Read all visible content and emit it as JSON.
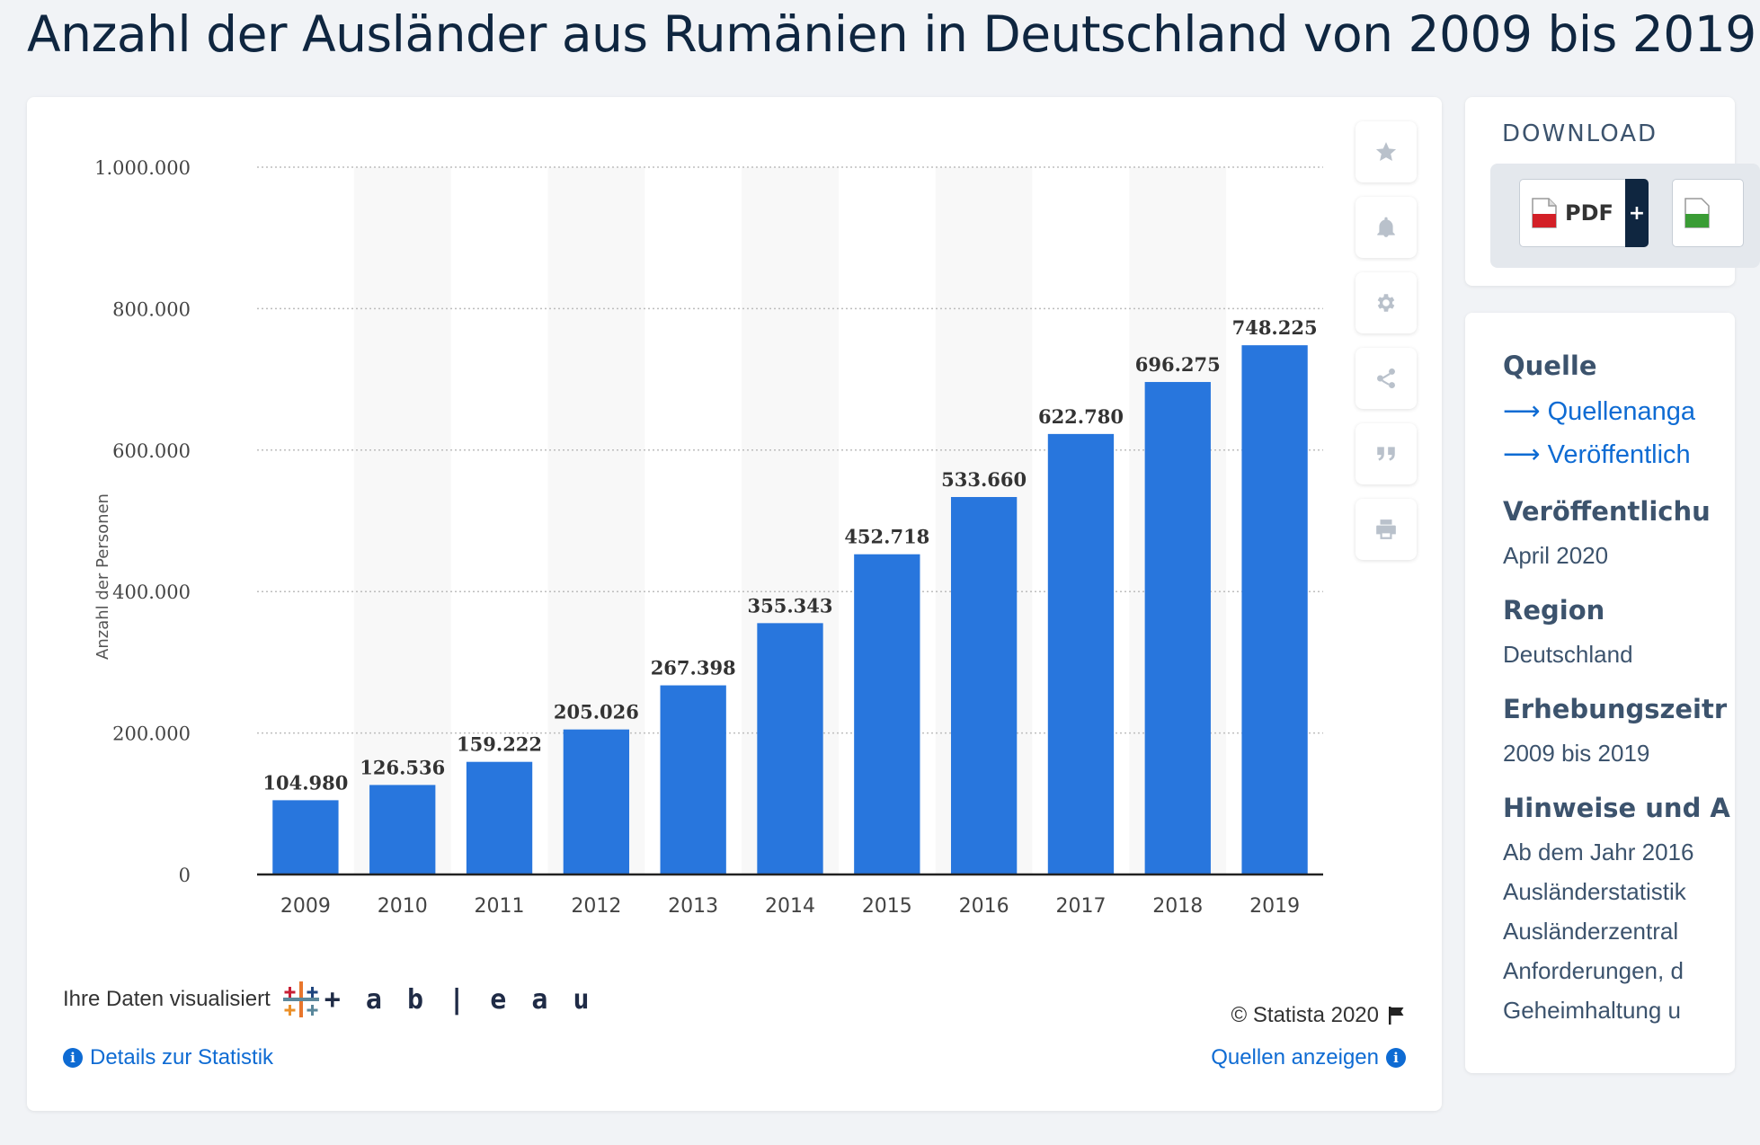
{
  "page_title": "Anzahl der Ausländer aus Rumänien in Deutschland von 2009 bis 2019",
  "chart_data": {
    "type": "bar",
    "title": "",
    "xlabel": "",
    "ylabel": "Anzahl der Personen",
    "categories": [
      "2009",
      "2010",
      "2011",
      "2012",
      "2013",
      "2014",
      "2015",
      "2016",
      "2017",
      "2018",
      "2019"
    ],
    "values": [
      104980,
      126536,
      159222,
      205026,
      267398,
      355343,
      452718,
      533660,
      622780,
      696275,
      748225
    ],
    "value_labels": [
      "104.980",
      "126.536",
      "159.222",
      "205.026",
      "267.398",
      "355.343",
      "452.718",
      "533.660",
      "622.780",
      "696.275",
      "748.225"
    ],
    "ylim": [
      0,
      1000000
    ],
    "y_ticks": [
      0,
      200000,
      400000,
      600000,
      800000,
      1000000
    ],
    "y_tick_labels": [
      "0",
      "200.000",
      "400.000",
      "600.000",
      "800.000",
      "1.000.000"
    ],
    "grid": true,
    "bar_color": "#2876dd"
  },
  "toolbar": {
    "icons": [
      "star-icon",
      "bell-icon",
      "gear-icon",
      "share-icon",
      "quote-icon",
      "print-icon"
    ]
  },
  "footer": {
    "tableau_label": "Ihre Daten visualisiert",
    "tableau_word": "+ a b | e a u",
    "copyright": "© Statista 2020",
    "details_link": "Details zur Statistik",
    "sources_link": "Quellen anzeigen"
  },
  "download": {
    "title": "DOWNLOAD",
    "pdf_label": "PDF",
    "plus": "+"
  },
  "info": {
    "source_head": "Quelle",
    "source_link1": "Quellenanga",
    "source_link2": "Veröffentlich",
    "pub_head": "Veröffentlichu",
    "pub_value": "April 2020",
    "region_head": "Region",
    "region_value": "Deutschland",
    "period_head": "Erhebungszeitr",
    "period_value": "2009 bis 2019",
    "notes_head": "Hinweise und A",
    "notes_lines": [
      "Ab dem Jahr 2016",
      "Ausländerstatistik",
      "Ausländerzentral",
      "Anforderungen, d",
      "Geheimhaltung u"
    ]
  }
}
